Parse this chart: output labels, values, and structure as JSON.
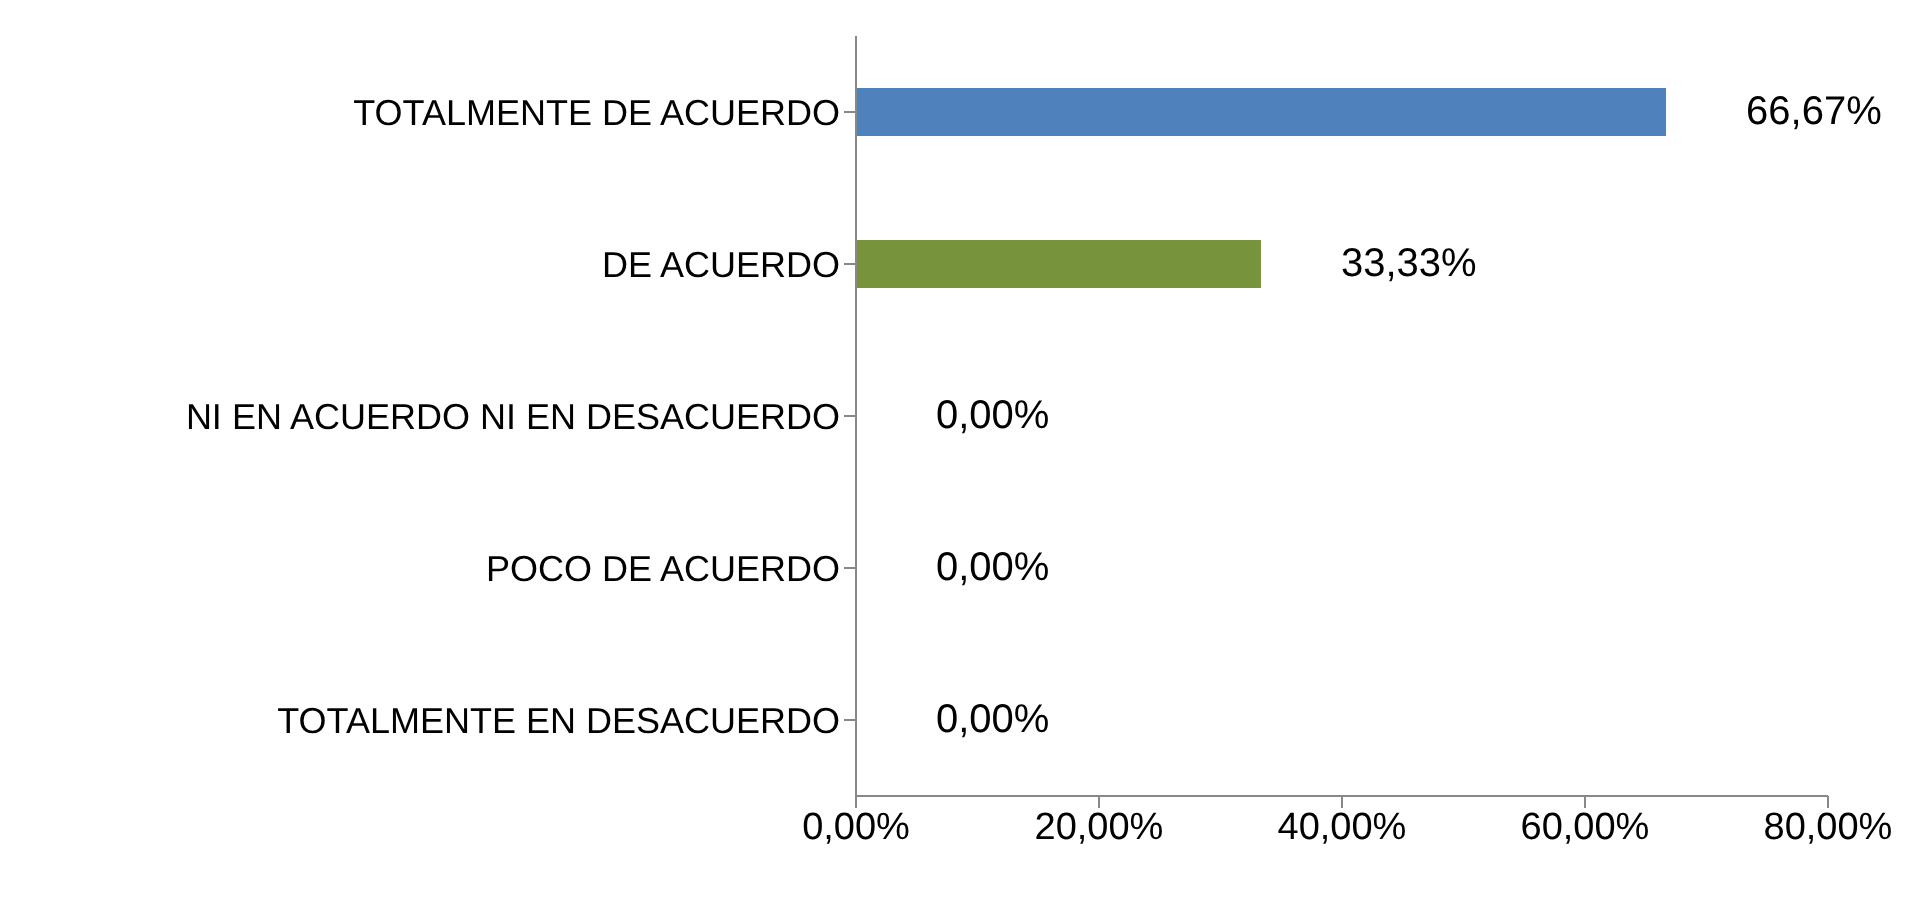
{
  "chart_data": {
    "type": "bar",
    "orientation": "horizontal",
    "categories": [
      "TOTALMENTE DE ACUERDO",
      "DE ACUERDO",
      "NI EN ACUERDO NI EN DESACUERDO",
      "POCO DE ACUERDO",
      "TOTALMENTE EN DESACUERDO"
    ],
    "values": [
      66.67,
      33.33,
      0,
      0,
      0
    ],
    "colors": [
      "#4f81bd",
      "#77933c",
      "#403152",
      "#e46c0a",
      "#953735"
    ],
    "value_labels": [
      "66,67%",
      "33,33%",
      "0,00%",
      "0,00%",
      "0,00%"
    ],
    "xlim": [
      0,
      80
    ],
    "xticks": [
      {
        "value": 0,
        "label": "0,00%"
      },
      {
        "value": 20,
        "label": "20,00%"
      },
      {
        "value": 40,
        "label": "40,00%"
      },
      {
        "value": 60,
        "label": "60,00%"
      },
      {
        "value": 80,
        "label": "80,00%"
      }
    ],
    "grid": false
  }
}
